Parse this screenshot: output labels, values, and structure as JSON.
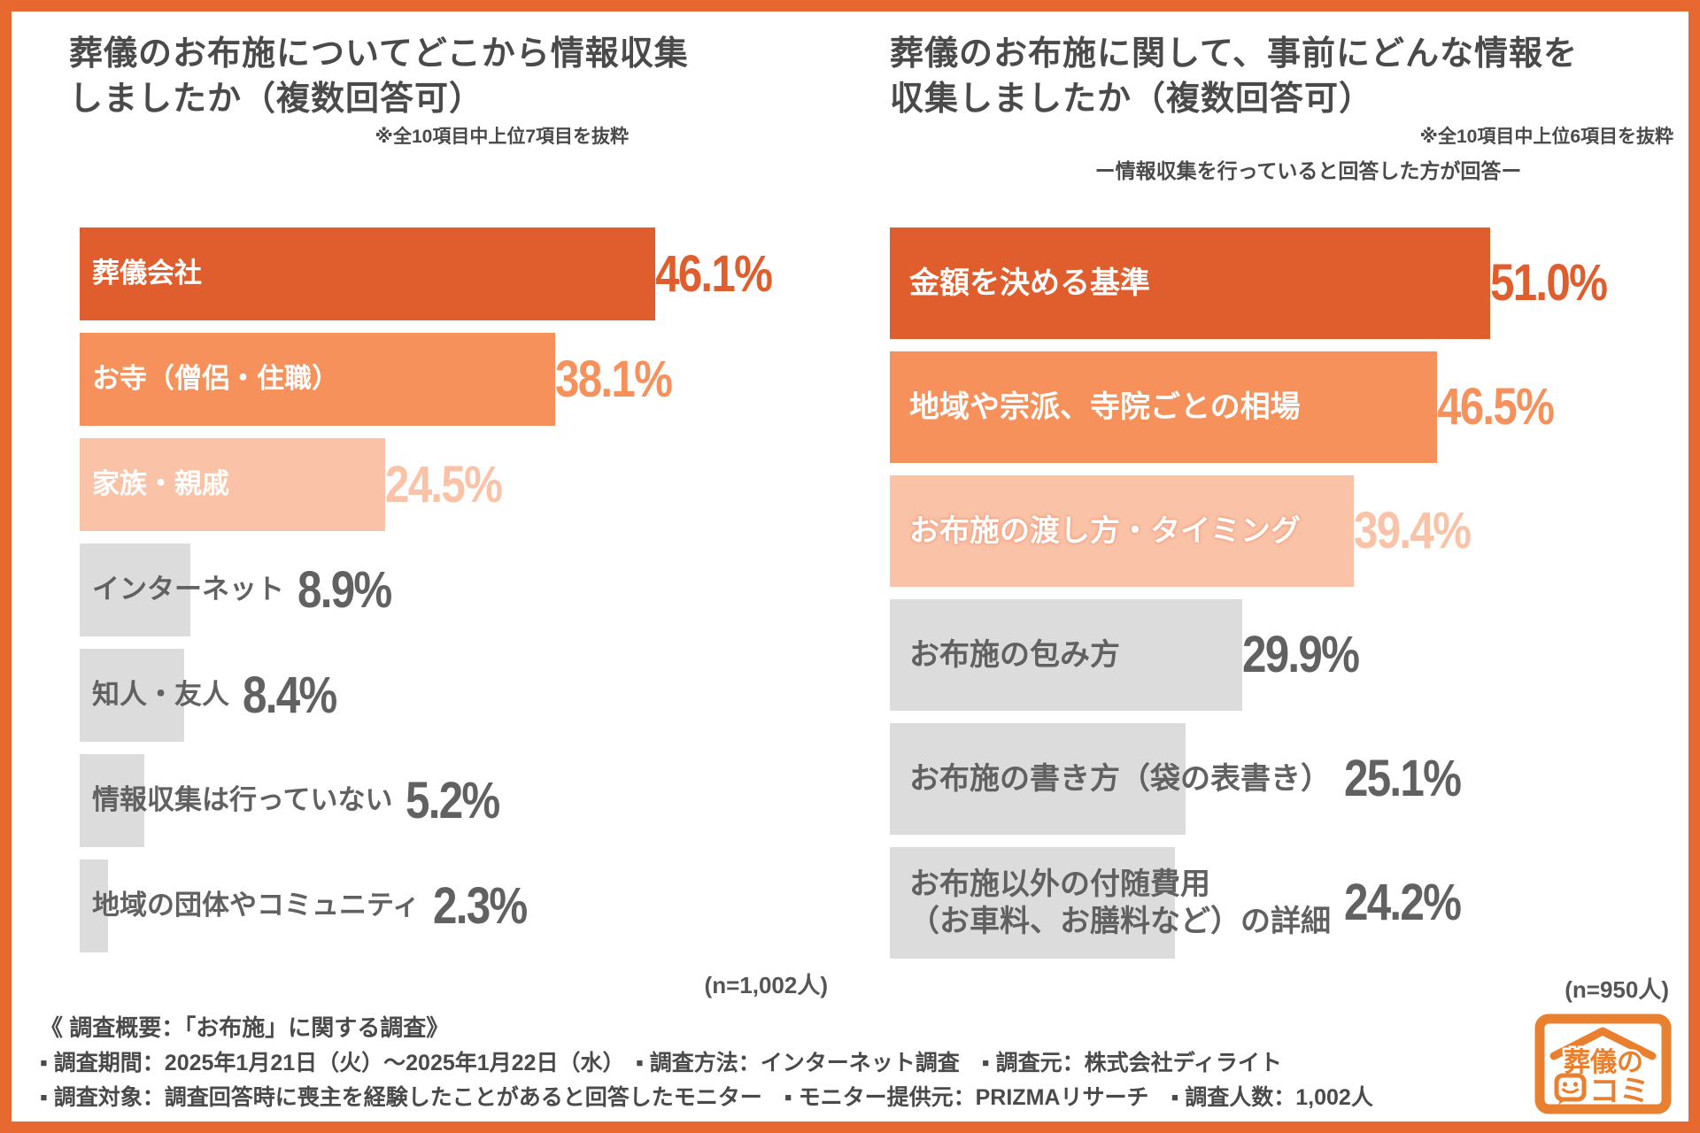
{
  "colors": {
    "bar_dark": "#E05E2D",
    "bar_mid": "#F6915C",
    "bar_light": "#FAC3A8",
    "bar_gray": "#DCDCDC",
    "frame": "#E7692F",
    "logo": "#E8802F",
    "text_dark": "#4A4A4A",
    "text_gray": "#616161",
    "label_white": "#FFFFFF"
  },
  "chart_data": [
    {
      "type": "bar",
      "orientation": "horizontal",
      "title_lines": [
        "葬儀のお布施についてどこから情報収集",
        "しましたか（複数回答可）"
      ],
      "note": "※全10項目中上位7項目を抜粋",
      "n_label": "(n=1,002人)",
      "xlim": [
        0,
        60
      ],
      "categories": [
        "葬儀会社",
        "お寺（僧侶・住職）",
        "家族・親戚",
        "インターネット",
        "知人・友人",
        "情報収集は行っていない",
        "地域の団体やコミュニティ"
      ],
      "values": [
        46.1,
        38.1,
        24.5,
        8.9,
        8.4,
        5.2,
        2.3
      ],
      "items": [
        {
          "label": "葬儀会社",
          "value": 46.1,
          "display": "46.1%",
          "color": "dark"
        },
        {
          "label": "お寺（僧侶・住職）",
          "value": 38.1,
          "display": "38.1%",
          "color": "mid"
        },
        {
          "label": "家族・親戚",
          "value": 24.5,
          "display": "24.5%",
          "color": "light"
        },
        {
          "label": "インターネット",
          "value": 8.9,
          "display": "8.9%",
          "color": "gray"
        },
        {
          "label": "知人・友人",
          "value": 8.4,
          "display": "8.4%",
          "color": "gray"
        },
        {
          "label": "情報収集は行っていない",
          "value": 5.2,
          "display": "5.2%",
          "color": "gray"
        },
        {
          "label": "地域の団体やコミュニティ",
          "value": 2.3,
          "display": "2.3%",
          "color": "gray"
        }
      ]
    },
    {
      "type": "bar",
      "orientation": "horizontal",
      "title_lines": [
        "葬儀のお布施に関して、事前にどんな情報を",
        "収集しましたか（複数回答可）"
      ],
      "note": "※全10項目中上位6項目を抜粋",
      "subnote": "ー情報収集を行っていると回答した方が回答ー",
      "n_label": "(n=950人)",
      "xlim": [
        0,
        60
      ],
      "categories": [
        "金額を決める基準",
        "地域や宗派、寺院ごとの相場",
        "お布施の渡し方・タイミング",
        "お布施の包み方",
        "お布施の書き方（袋の表書き）",
        "お布施以外の付随費用（お車料、お膳料など）の詳細"
      ],
      "values": [
        51.0,
        46.5,
        39.4,
        29.9,
        25.1,
        24.2
      ],
      "items": [
        {
          "label": "金額を決める基準",
          "value": 51.0,
          "display": "51.0%",
          "color": "dark"
        },
        {
          "label": "地域や宗派、寺院ごとの相場",
          "value": 46.5,
          "display": "46.5%",
          "color": "mid"
        },
        {
          "label": "お布施の渡し方・タイミング",
          "value": 39.4,
          "display": "39.4%",
          "color": "light",
          "outlined": true
        },
        {
          "label": "お布施の包み方",
          "value": 29.9,
          "display": "29.9%",
          "color": "gray"
        },
        {
          "label": "お布施の書き方（袋の表書き）",
          "value": 25.1,
          "display": "25.1%",
          "color": "gray"
        },
        {
          "label": "お布施以外の付随費用（お車料、お膳料など）の詳細",
          "label_lines": [
            "お布施以外の付随費用",
            "（お車料、お膳料など）の詳細"
          ],
          "value": 24.2,
          "display": "24.2%",
          "color": "gray"
        }
      ]
    }
  ],
  "survey": {
    "heading": "《 調査概要：「お布施」に関する調査》",
    "lines": [
      "▪ 調査期間：2025年1月21日（火）～2025年1月22日（水）　▪ 調査方法：インターネット調査　▪ 調査元：株式会社ディライト",
      "▪ 調査対象：調査回答時に喪主を経験したことがあると回答したモニター　▪ モニター提供元：PRIZMAリサーチ　▪ 調査人数：1,002人"
    ]
  },
  "logo": {
    "text_top": "葬儀の",
    "text_bottom": "コミ"
  }
}
